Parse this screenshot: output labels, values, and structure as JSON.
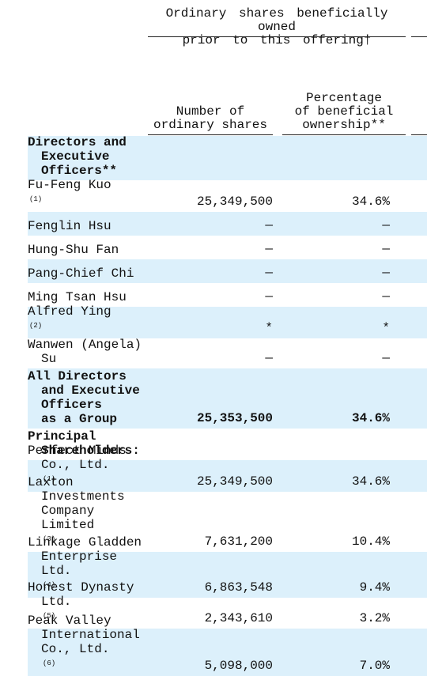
{
  "header": {
    "title": [
      "Ordinary shares beneficially owned",
      "prior to this offering†"
    ],
    "columns": [
      [
        "Number of",
        "ordinary shares"
      ],
      [
        "Percentage",
        "of beneficial",
        "ownership**"
      ]
    ]
  },
  "table": {
    "rows": [
      {
        "name": [
          "Directors and",
          "Executive",
          "Officers**"
        ]
      },
      {
        "name": [
          "Fu-Feng Kuo"
        ],
        "note": "(1)",
        "shares": "25,349,500",
        "percent": "34.6%"
      },
      {
        "name": [
          "Fenglin Hsu"
        ],
        "shares": "—",
        "percent": "—"
      },
      {
        "name": [
          "Hung-Shu Fan"
        ],
        "shares": "—",
        "percent": "—"
      },
      {
        "name": [
          "Pang-Chief Chi"
        ],
        "shares": "—",
        "percent": "—"
      },
      {
        "name": [
          "Ming Tsan Hsu"
        ],
        "shares": "—",
        "percent": "—"
      },
      {
        "name": [
          "Alfred Ying"
        ],
        "note": "(2)",
        "shares": "*",
        "percent": "*"
      },
      {
        "name": [
          "Wanwen (Angela)",
          "Su"
        ],
        "shares": "—",
        "percent": "—"
      },
      {
        "name": [
          "All Directors",
          "and Executive",
          "Officers",
          "as a Group"
        ],
        "shares": "25,353,500",
        "percent": "34.6%"
      },
      {
        "name": [
          "Principal",
          "Shareholders:"
        ]
      },
      {
        "name": [
          "Perfect Minds",
          "Co., Ltd."
        ],
        "note": "(1)",
        "shares": "25,349,500",
        "percent": "34.6%"
      },
      {
        "name": [
          "Laxton",
          "Investments",
          "Company",
          "Limited"
        ],
        "note": "(3)",
        "shares": "7,631,200",
        "percent": "10.4%"
      },
      {
        "name": [
          "Linkage Gladden",
          "Enterprise",
          "Ltd."
        ],
        "note": "(4)",
        "shares": "6,863,548",
        "percent": "9.4%"
      },
      {
        "name": [
          "Honest Dynasty",
          "Ltd."
        ],
        "note": "(5)",
        "shares": "2,343,610",
        "percent": "3.2%"
      },
      {
        "name": [
          "Peak Valley",
          "International",
          "Co., Ltd."
        ],
        "note": "(6)",
        "shares": "5,098,000",
        "percent": "7.0%"
      }
    ]
  }
}
